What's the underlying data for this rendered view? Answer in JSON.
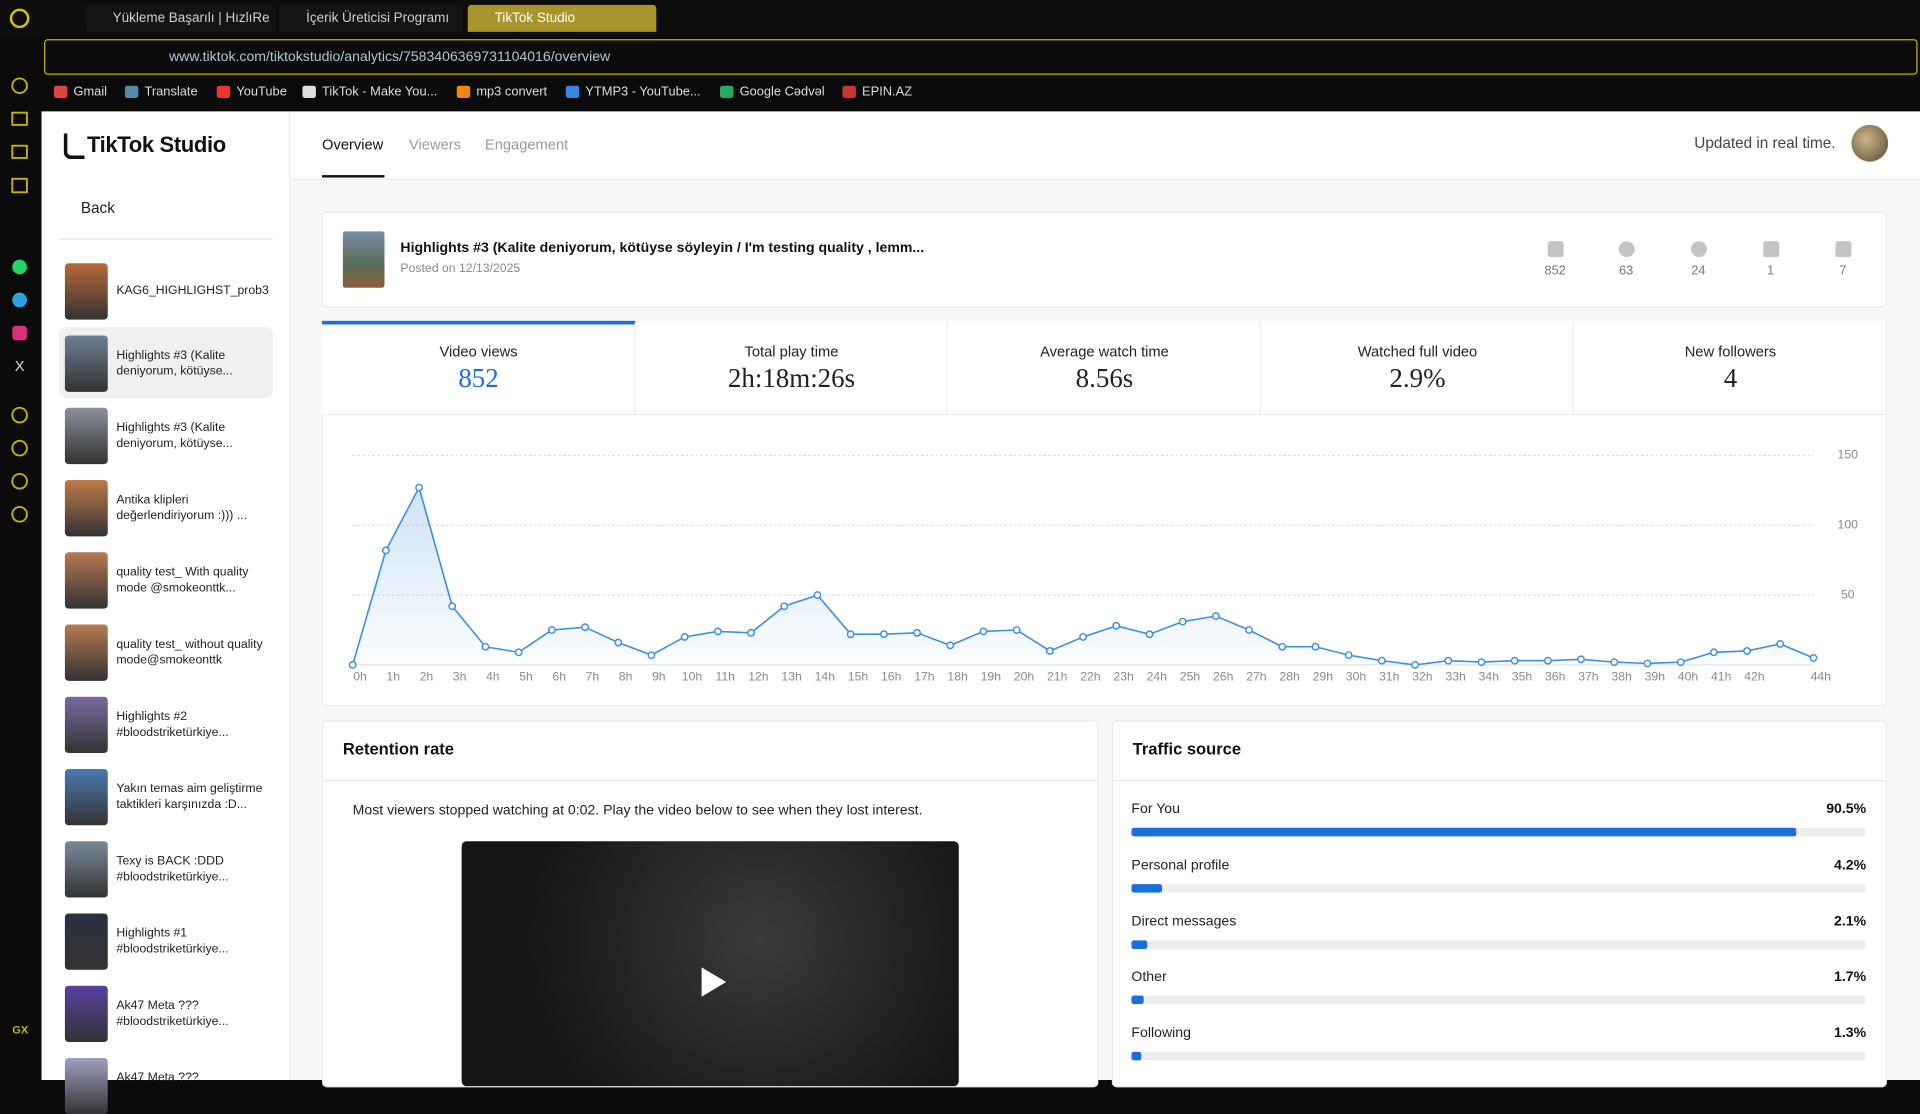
{
  "browser": {
    "tabs": [
      "Yükleme Başarılı | HızlıRe",
      "İçerik Üreticisi Programı",
      "TikTok Studio"
    ],
    "url": "www.tiktok.com/tiktokstudio/analytics/7583406369731104016/overview",
    "bookmarks": [
      "Gmail",
      "Translate",
      "YouTube",
      "TikTok - Make You...",
      "mp3 convert",
      "YTMP3 - YouTube...",
      "Google Cədvəl",
      "EPIN.AZ"
    ],
    "badge": "GX"
  },
  "studio": {
    "logo": "TikTok Studio",
    "back": "Back",
    "videos": [
      "KAG6_HIGHLIGHST_prob3",
      "Highlights #3 (Kalite deniyorum, kötüyse...",
      "Highlights #3 (Kalite deniyorum, kötüyse...",
      "Antika klipleri değerlendiriyorum :))) ...",
      "quality test_ With quality mode @smokeonttk...",
      "quality test_ without quality mode@smokeonttk",
      "Highlights #2 #bloodstriketürkiye...",
      "Yakın temas aim geliştirme taktikleri karşınızda :D...",
      "Texy is BACK :DDD #bloodstriketürkiye...",
      "Highlights #1 #bloodstriketürkiye...",
      "Ak47 Meta ??? #bloodstriketürkiye...",
      "Ak47 Meta ???"
    ],
    "tabs": [
      "Overview",
      "Viewers",
      "Engagement"
    ],
    "updated": "Updated in real time.",
    "post": {
      "title": "Highlights #3 (Kalite deniyorum, kötüyse söyleyin / I'm testing quality , lemm...",
      "posted": "Posted on 12/13/2025",
      "stats": [
        852,
        63,
        24,
        1,
        7
      ]
    },
    "metrics": [
      {
        "label": "Video views",
        "value": 852
      },
      {
        "label": "Total play time",
        "value": "2h:18m:26s"
      },
      {
        "label": "Average watch time",
        "value": "8.56s"
      },
      {
        "label": "Watched full video",
        "value": "2.9%"
      },
      {
        "label": "New followers",
        "value": 4
      }
    ],
    "retention": {
      "title": "Retention rate",
      "text": "Most viewers stopped watching at 0:02. Play the video below to see when they lost interest."
    },
    "traffic": {
      "title": "Traffic source",
      "names": [
        "For You",
        "Personal profile",
        "Direct messages",
        "Other",
        "Following"
      ],
      "values": [
        90.5,
        4.2,
        2.1,
        1.7,
        1.3
      ],
      "value_labels": [
        "90.5%",
        "4.2%",
        "2.1%",
        "1.7%",
        "1.3%"
      ],
      "color": "#1b6fd8"
    }
  },
  "chart_data": {
    "type": "line",
    "color": "#3d8fe0",
    "categories": [
      "0h",
      "1h",
      "2h",
      "3h",
      "4h",
      "5h",
      "6h",
      "7h",
      "8h",
      "9h",
      "10h",
      "11h",
      "12h",
      "13h",
      "14h",
      "15h",
      "16h",
      "17h",
      "18h",
      "19h",
      "20h",
      "21h",
      "22h",
      "23h",
      "24h",
      "25h",
      "26h",
      "27h",
      "28h",
      "29h",
      "30h",
      "31h",
      "32h",
      "33h",
      "34h",
      "35h",
      "36h",
      "37h",
      "38h",
      "39h",
      "40h",
      "41h",
      "42h",
      null,
      "44h"
    ],
    "values": [
      0,
      82,
      127,
      42,
      13,
      9,
      25,
      27,
      16,
      7,
      20,
      24,
      23,
      42,
      50,
      22,
      22,
      23,
      14,
      24,
      25,
      10,
      20,
      28,
      22,
      31,
      35,
      25,
      13,
      13,
      7,
      3,
      0,
      3,
      2,
      3,
      3,
      4,
      2,
      1,
      2,
      9,
      10,
      15,
      5
    ],
    "ylim": [
      0,
      150
    ],
    "yticks": [
      50,
      100,
      150
    ],
    "grid": true
  }
}
